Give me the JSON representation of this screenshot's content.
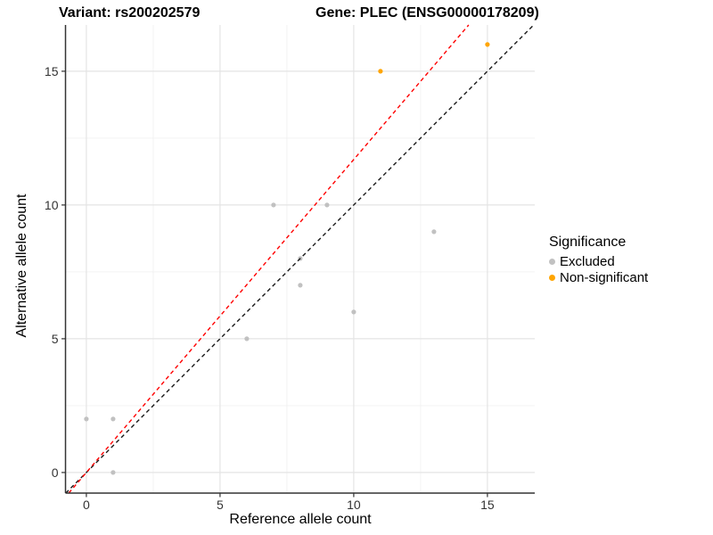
{
  "chart_data": {
    "type": "scatter",
    "title_left": "Variant: rs200202579",
    "title_right": "Gene: PLEC (ENSG00000178209)",
    "xlabel": "Reference allele count",
    "ylabel": "Alternative allele count",
    "xlim": [
      -0.78,
      16.77
    ],
    "ylim": [
      -0.77,
      16.73
    ],
    "xticks": [
      0,
      5,
      10,
      15
    ],
    "yticks": [
      0,
      5,
      10,
      15
    ],
    "minor_xticks": [
      2.5,
      7.5,
      12.5
    ],
    "minor_yticks": [
      2.5,
      7.5,
      12.5
    ],
    "grid": true,
    "legend_position": "right",
    "series": [
      {
        "name": "Excluded",
        "color": "#c1c1c1",
        "points": [
          [
            0,
            2
          ],
          [
            1,
            0
          ],
          [
            1,
            2
          ],
          [
            6,
            5
          ],
          [
            7,
            10
          ],
          [
            8,
            7
          ],
          [
            8,
            8
          ],
          [
            9,
            10
          ],
          [
            10,
            6
          ],
          [
            13,
            9
          ]
        ]
      },
      {
        "name": "Non-significant",
        "color": "#ffa500",
        "points": [
          [
            11,
            15
          ],
          [
            15,
            16
          ]
        ]
      }
    ],
    "lines": [
      {
        "name": "identity-line",
        "slope": 1.0,
        "intercept": 0,
        "color": "#1a1a1a",
        "style": "dashed"
      },
      {
        "name": "fitted-line",
        "slope": 1.17,
        "intercept": 0,
        "color": "#ff0000",
        "style": "dashed"
      }
    ],
    "legend": {
      "title": "Significance",
      "entries": [
        {
          "label": "Excluded",
          "color": "#c1c1c1"
        },
        {
          "label": "Non-significant",
          "color": "#ffa500"
        }
      ]
    },
    "colors": {
      "axis": "#333333",
      "tick_label": "#333333",
      "grid_major": "#e4e4e4",
      "grid_minor": "#f1f1f1",
      "background": "#ffffff"
    }
  }
}
